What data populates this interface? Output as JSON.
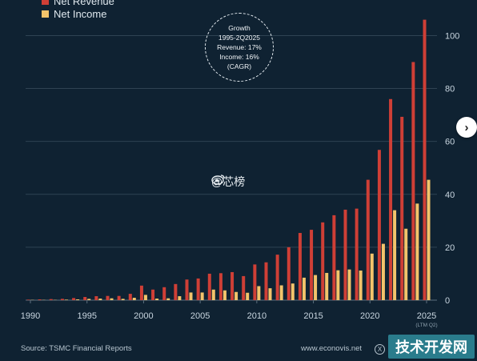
{
  "legend": {
    "revenue_label": "Net Revenue",
    "income_label": "Net Income"
  },
  "growth": {
    "line1": "Growth",
    "line2": "1995-2Q2025",
    "line3": "Revenue: 17%",
    "line4": "Income: 16%",
    "line5": "(CAGR)"
  },
  "footer": {
    "source": "Source: TSMC Financial Reports",
    "site": "www.econovis.net"
  },
  "watermark": {
    "text": "@芯榜"
  },
  "badge": {
    "text": "技术开发网"
  },
  "colors": {
    "revenue": "#cf3f36",
    "income": "#f3c46b",
    "background": "#0f2232",
    "grid": "#2f4353"
  },
  "chart_data": {
    "type": "bar",
    "categories": [
      "1990",
      "1991",
      "1992",
      "1993",
      "1994",
      "1995",
      "1996",
      "1997",
      "1998",
      "1999",
      "2000",
      "2001",
      "2002",
      "2003",
      "2004",
      "2005",
      "2006",
      "2007",
      "2008",
      "2009",
      "2010",
      "2011",
      "2012",
      "2013",
      "2014",
      "2015",
      "2016",
      "2017",
      "2018",
      "2019",
      "2020",
      "2021",
      "2022",
      "2023",
      "2024",
      "2025"
    ],
    "series": [
      {
        "name": "Net Revenue",
        "values": [
          0.2,
          0.3,
          0.4,
          0.5,
          0.8,
          1.2,
          1.5,
          1.6,
          1.6,
          2.4,
          5.5,
          4.0,
          4.9,
          6.1,
          7.8,
          8.2,
          10.0,
          10.2,
          10.6,
          9.1,
          13.5,
          14.3,
          17.2,
          20.0,
          25.4,
          26.6,
          29.4,
          32.1,
          34.2,
          34.6,
          45.5,
          56.8,
          76.0,
          69.3,
          90.0,
          106.0
        ]
      },
      {
        "name": "Net Income",
        "values": [
          0.1,
          0.1,
          0.1,
          0.2,
          0.3,
          0.5,
          0.6,
          0.7,
          0.5,
          0.9,
          2.0,
          0.6,
          0.7,
          1.5,
          2.9,
          2.9,
          4.0,
          3.7,
          3.1,
          2.8,
          5.3,
          4.5,
          5.6,
          6.3,
          8.5,
          9.5,
          10.3,
          11.3,
          11.6,
          11.2,
          17.6,
          21.3,
          34.0,
          27.0,
          36.5,
          45.5
        ]
      }
    ],
    "x_ticks": [
      "1990",
      "1995",
      "2000",
      "2005",
      "2010",
      "2015",
      "2020",
      "2025"
    ],
    "x_tick_sub": "(LTM Q2)",
    "y_ticks": [
      0,
      20,
      40,
      60,
      80,
      100
    ],
    "ylim": [
      0,
      108
    ],
    "grid": true,
    "legend_position": "top-left"
  }
}
